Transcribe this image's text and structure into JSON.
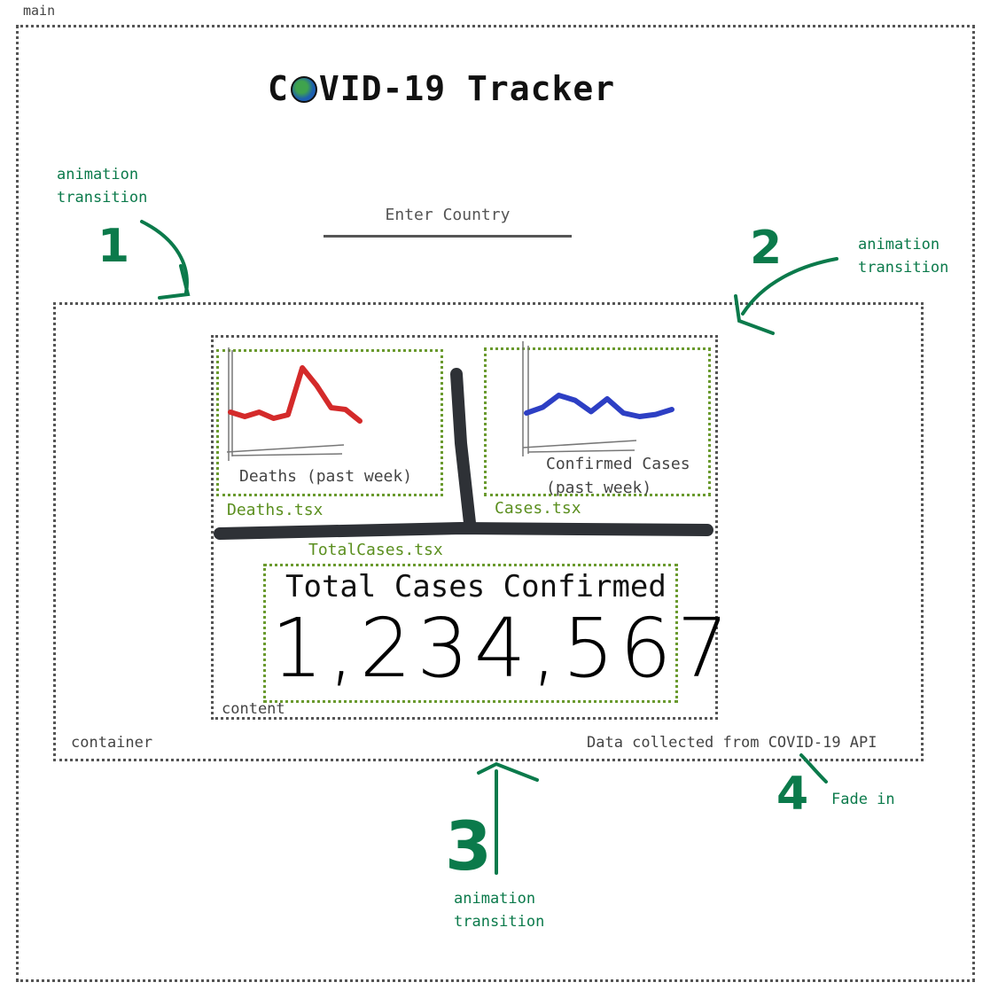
{
  "labels": {
    "main": "main",
    "container": "container",
    "content": "content"
  },
  "header": {
    "title_pre": "C",
    "title_post": "VID-19 Tracker",
    "globe_icon": "globe-icon"
  },
  "search": {
    "placeholder": "Enter Country"
  },
  "deaths_panel": {
    "caption": "Deaths (past week)",
    "component": "Deaths.tsx",
    "line_color": "#d42a2a",
    "trend": [
      0.35,
      0.3,
      0.35,
      0.28,
      0.32,
      0.85,
      0.65,
      0.4,
      0.38,
      0.25
    ]
  },
  "cases_panel": {
    "caption_line1": "Confirmed Cases",
    "caption_line2": "(past week)",
    "component": "Cases.tsx",
    "line_color": "#2d3fc4",
    "trend": [
      0.3,
      0.38,
      0.55,
      0.48,
      0.32,
      0.5,
      0.3,
      0.25,
      0.28,
      0.35
    ]
  },
  "total_panel": {
    "component": "TotalCases.tsx",
    "title": "Total Cases Confirmed",
    "value": "1,234,567"
  },
  "footer": {
    "source": "Data collected from COVID-19 API"
  },
  "annotations": [
    {
      "number": "1",
      "text_line1": "animation",
      "text_line2": "transition"
    },
    {
      "number": "2",
      "text_line1": "animation",
      "text_line2": "transition"
    },
    {
      "number": "3",
      "text_line1": "animation",
      "text_line2": "transition"
    },
    {
      "number": "4",
      "text_line1": "Fade in"
    }
  ],
  "colors": {
    "annotation_green": "#0b7a4b",
    "component_green": "#5b8f1f",
    "divider": "#2e3136"
  }
}
